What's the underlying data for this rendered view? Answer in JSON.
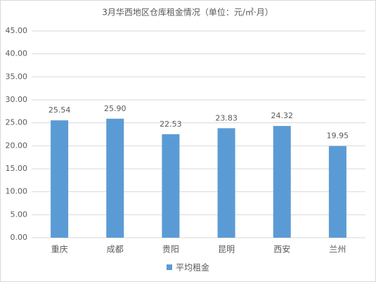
{
  "chart_data": {
    "type": "bar",
    "title": "3月华西地区仓库租金情况（单位：元/㎡·月）",
    "categories": [
      "重庆",
      "成都",
      "贵阳",
      "昆明",
      "西安",
      "兰州"
    ],
    "series": [
      {
        "name": "平均租金",
        "color": "#5b9bd5",
        "values": [
          25.54,
          25.9,
          22.53,
          23.83,
          24.32,
          19.95
        ],
        "value_labels": [
          "25.54",
          "25.90",
          "22.53",
          "23.83",
          "24.32",
          "19.95"
        ]
      }
    ],
    "ylim": [
      0,
      45
    ],
    "yticks": [
      {
        "value": 0,
        "label": "0.00"
      },
      {
        "value": 5,
        "label": "5.00"
      },
      {
        "value": 10,
        "label": "10.00"
      },
      {
        "value": 15,
        "label": "15.00"
      },
      {
        "value": 20,
        "label": "20.00"
      },
      {
        "value": 25,
        "label": "25.00"
      },
      {
        "value": 30,
        "label": "30.00"
      },
      {
        "value": 35,
        "label": "35.00"
      },
      {
        "value": 40,
        "label": "40.00"
      },
      {
        "value": 45,
        "label": "45.00"
      }
    ],
    "grid": true,
    "legend": "bottom"
  }
}
